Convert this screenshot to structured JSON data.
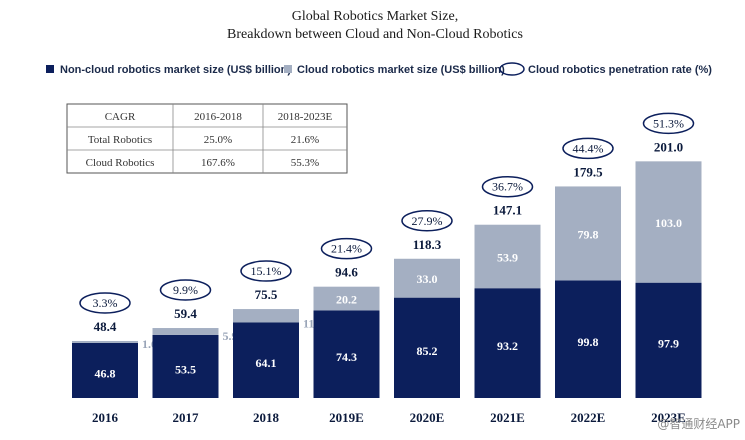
{
  "chart_data": {
    "type": "bar",
    "stacked": true,
    "title_line1": "Global Robotics Market Size,",
    "title_line2": "Breakdown between Cloud and Non-Cloud Robotics",
    "legend": {
      "non_cloud": "Non-cloud robotics market size (US$ billion)",
      "cloud": "Cloud robotics market size (US$ billion)",
      "rate": "Cloud robotics penetration rate (%)"
    },
    "categories": [
      "2016",
      "2017",
      "2018",
      "2019E",
      "2020E",
      "2021E",
      "2022E",
      "2023E"
    ],
    "series": [
      {
        "name": "Non-cloud robotics market size (US$ billion)",
        "values": [
          "46.8",
          "53.5",
          "64.1",
          "74.3",
          "85.2",
          "93.2",
          "99.8",
          "97.9"
        ]
      },
      {
        "name": "Cloud robotics market size (US$ billion)",
        "values": [
          "1.6",
          "5.9",
          "11.4",
          "20.2",
          "33.0",
          "53.9",
          "79.8",
          "103.0"
        ]
      }
    ],
    "totals": [
      "48.4",
      "59.4",
      "75.5",
      "94.6",
      "118.3",
      "147.1",
      "179.5",
      "201.0"
    ],
    "penetration_rate": [
      "3.3%",
      "9.9%",
      "15.1%",
      "21.4%",
      "27.9%",
      "36.7%",
      "44.4%",
      "51.3%"
    ],
    "ylim": [
      0,
      210
    ],
    "colors": {
      "non_cloud": "#0c1f5c",
      "cloud": "#a4afc2",
      "outline": "#0c1f5c"
    },
    "cagr_table": {
      "headers": [
        "CAGR",
        "2016-2018",
        "2018-2023E"
      ],
      "rows": [
        [
          "Total Robotics",
          "25.0%",
          "21.6%"
        ],
        [
          "Cloud Robotics",
          "167.6%",
          "55.3%"
        ]
      ]
    }
  },
  "watermark": "@智通财经APP"
}
